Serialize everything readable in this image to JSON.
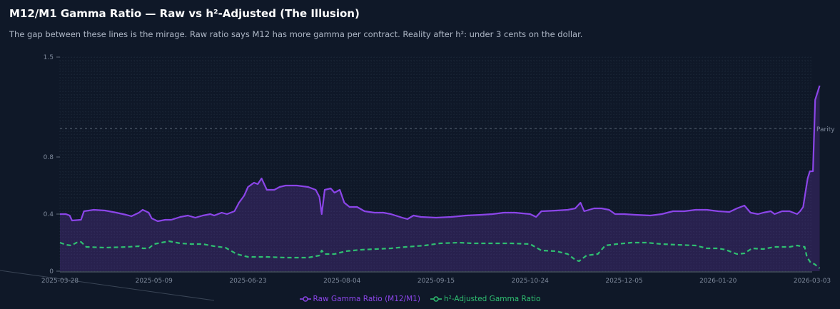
{
  "chart_data": {
    "type": "line",
    "title": "M12/M1 Gamma Ratio — Raw vs h²-Adjusted (The Illusion)",
    "subtitle": "The gap between these lines is the mirage. Raw ratio says M12 has more gamma per contract. Reality after h²: under 3 cents on the dollar.",
    "ylim": [
      0,
      1.5
    ],
    "y_ticks": [
      "0",
      "0.4",
      "0.8",
      "1.5"
    ],
    "x_ticks": [
      "2025-03-28",
      "2025-05-09",
      "2025-06-23",
      "2025-08-04",
      "2025-09-15",
      "2025-10-24",
      "2025-12-05",
      "2026-01-20",
      "2026-03-03"
    ],
    "reference_line": {
      "value": 1.0,
      "label": "Parity"
    },
    "series": [
      {
        "name": "Raw Gamma Ratio (M12/M1)",
        "color": "#8b45e8",
        "style": "solid",
        "filled": true,
        "points": [
          [
            0.0,
            0.4
          ],
          [
            0.008,
            0.4
          ],
          [
            0.013,
            0.39
          ],
          [
            0.016,
            0.355
          ],
          [
            0.028,
            0.36
          ],
          [
            0.032,
            0.42
          ],
          [
            0.045,
            0.43
          ],
          [
            0.06,
            0.425
          ],
          [
            0.075,
            0.41
          ],
          [
            0.088,
            0.395
          ],
          [
            0.095,
            0.385
          ],
          [
            0.105,
            0.41
          ],
          [
            0.11,
            0.43
          ],
          [
            0.118,
            0.41
          ],
          [
            0.122,
            0.37
          ],
          [
            0.13,
            0.35
          ],
          [
            0.14,
            0.36
          ],
          [
            0.148,
            0.36
          ],
          [
            0.16,
            0.38
          ],
          [
            0.17,
            0.39
          ],
          [
            0.18,
            0.375
          ],
          [
            0.19,
            0.39
          ],
          [
            0.2,
            0.4
          ],
          [
            0.205,
            0.39
          ],
          [
            0.215,
            0.41
          ],
          [
            0.222,
            0.4
          ],
          [
            0.232,
            0.42
          ],
          [
            0.238,
            0.48
          ],
          [
            0.245,
            0.53
          ],
          [
            0.25,
            0.59
          ],
          [
            0.258,
            0.62
          ],
          [
            0.263,
            0.61
          ],
          [
            0.268,
            0.65
          ],
          [
            0.275,
            0.57
          ],
          [
            0.285,
            0.57
          ],
          [
            0.292,
            0.59
          ],
          [
            0.3,
            0.6
          ],
          [
            0.315,
            0.6
          ],
          [
            0.33,
            0.59
          ],
          [
            0.34,
            0.57
          ],
          [
            0.345,
            0.52
          ],
          [
            0.348,
            0.4
          ],
          [
            0.352,
            0.57
          ],
          [
            0.36,
            0.58
          ],
          [
            0.365,
            0.55
          ],
          [
            0.372,
            0.57
          ],
          [
            0.378,
            0.48
          ],
          [
            0.385,
            0.45
          ],
          [
            0.395,
            0.45
          ],
          [
            0.405,
            0.42
          ],
          [
            0.418,
            0.41
          ],
          [
            0.43,
            0.41
          ],
          [
            0.44,
            0.4
          ],
          [
            0.455,
            0.375
          ],
          [
            0.462,
            0.365
          ],
          [
            0.47,
            0.39
          ],
          [
            0.48,
            0.38
          ],
          [
            0.5,
            0.375
          ],
          [
            0.52,
            0.38
          ],
          [
            0.54,
            0.39
          ],
          [
            0.56,
            0.395
          ],
          [
            0.575,
            0.4
          ],
          [
            0.59,
            0.41
          ],
          [
            0.605,
            0.41
          ],
          [
            0.625,
            0.4
          ],
          [
            0.633,
            0.38
          ],
          [
            0.64,
            0.42
          ],
          [
            0.66,
            0.425
          ],
          [
            0.675,
            0.43
          ],
          [
            0.685,
            0.44
          ],
          [
            0.692,
            0.48
          ],
          [
            0.697,
            0.42
          ],
          [
            0.71,
            0.44
          ],
          [
            0.72,
            0.44
          ],
          [
            0.73,
            0.43
          ],
          [
            0.738,
            0.4
          ],
          [
            0.75,
            0.4
          ],
          [
            0.765,
            0.395
          ],
          [
            0.785,
            0.39
          ],
          [
            0.8,
            0.4
          ],
          [
            0.815,
            0.42
          ],
          [
            0.83,
            0.42
          ],
          [
            0.845,
            0.43
          ],
          [
            0.86,
            0.43
          ],
          [
            0.875,
            0.42
          ],
          [
            0.89,
            0.415
          ],
          [
            0.9,
            0.44
          ],
          [
            0.91,
            0.46
          ],
          [
            0.918,
            0.41
          ],
          [
            0.928,
            0.4
          ],
          [
            0.935,
            0.41
          ],
          [
            0.945,
            0.42
          ],
          [
            0.95,
            0.4
          ],
          [
            0.96,
            0.42
          ],
          [
            0.97,
            0.42
          ],
          [
            0.98,
            0.4
          ],
          [
            0.984,
            0.42
          ],
          [
            0.988,
            0.45
          ],
          [
            0.991,
            0.55
          ],
          [
            0.994,
            0.65
          ],
          [
            0.997,
            0.7
          ],
          [
            1.001,
            0.7
          ],
          [
            1.004,
            1.2
          ],
          [
            1.01,
            1.3
          ]
        ]
      },
      {
        "name": "h²-Adjusted Gamma Ratio",
        "color": "#2fbf71",
        "style": "dashed",
        "filled": false,
        "points": [
          [
            0.0,
            0.2
          ],
          [
            0.008,
            0.185
          ],
          [
            0.015,
            0.18
          ],
          [
            0.022,
            0.2
          ],
          [
            0.028,
            0.205
          ],
          [
            0.035,
            0.17
          ],
          [
            0.06,
            0.165
          ],
          [
            0.09,
            0.17
          ],
          [
            0.105,
            0.175
          ],
          [
            0.11,
            0.16
          ],
          [
            0.118,
            0.16
          ],
          [
            0.125,
            0.19
          ],
          [
            0.145,
            0.21
          ],
          [
            0.16,
            0.195
          ],
          [
            0.175,
            0.19
          ],
          [
            0.19,
            0.19
          ],
          [
            0.205,
            0.175
          ],
          [
            0.22,
            0.165
          ],
          [
            0.235,
            0.12
          ],
          [
            0.25,
            0.1
          ],
          [
            0.275,
            0.1
          ],
          [
            0.3,
            0.095
          ],
          [
            0.33,
            0.095
          ],
          [
            0.345,
            0.11
          ],
          [
            0.348,
            0.145
          ],
          [
            0.352,
            0.12
          ],
          [
            0.365,
            0.12
          ],
          [
            0.38,
            0.14
          ],
          [
            0.4,
            0.15
          ],
          [
            0.42,
            0.155
          ],
          [
            0.44,
            0.16
          ],
          [
            0.46,
            0.17
          ],
          [
            0.485,
            0.18
          ],
          [
            0.505,
            0.195
          ],
          [
            0.53,
            0.2
          ],
          [
            0.55,
            0.195
          ],
          [
            0.575,
            0.195
          ],
          [
            0.6,
            0.195
          ],
          [
            0.625,
            0.19
          ],
          [
            0.64,
            0.145
          ],
          [
            0.66,
            0.14
          ],
          [
            0.675,
            0.12
          ],
          [
            0.685,
            0.08
          ],
          [
            0.69,
            0.07
          ],
          [
            0.7,
            0.11
          ],
          [
            0.715,
            0.12
          ],
          [
            0.725,
            0.18
          ],
          [
            0.74,
            0.19
          ],
          [
            0.76,
            0.2
          ],
          [
            0.78,
            0.2
          ],
          [
            0.8,
            0.19
          ],
          [
            0.82,
            0.185
          ],
          [
            0.845,
            0.18
          ],
          [
            0.86,
            0.16
          ],
          [
            0.875,
            0.16
          ],
          [
            0.885,
            0.15
          ],
          [
            0.9,
            0.12
          ],
          [
            0.91,
            0.125
          ],
          [
            0.92,
            0.16
          ],
          [
            0.935,
            0.155
          ],
          [
            0.95,
            0.17
          ],
          [
            0.97,
            0.17
          ],
          [
            0.98,
            0.18
          ],
          [
            0.99,
            0.17
          ],
          [
            0.993,
            0.1
          ],
          [
            0.998,
            0.06
          ],
          [
            1.003,
            0.05
          ],
          [
            1.01,
            0.02
          ]
        ]
      }
    ],
    "legend": "bottom-center",
    "grid": true
  }
}
